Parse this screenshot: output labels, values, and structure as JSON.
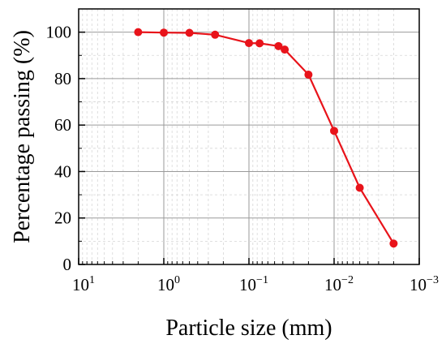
{
  "chart_data": {
    "type": "line",
    "title": "",
    "xlabel": "Particle size (mm)",
    "ylabel": "Percentage passing (%)",
    "x_scale": "log",
    "x_reversed": true,
    "xlim": [
      10,
      0.001
    ],
    "ylim": [
      0,
      110
    ],
    "grid": true,
    "x_ticks": [
      {
        "value": 10,
        "base": "10",
        "exp": "1"
      },
      {
        "value": 1,
        "base": "10",
        "exp": "0"
      },
      {
        "value": 0.1,
        "base": "10",
        "exp": "−1"
      },
      {
        "value": 0.01,
        "base": "10",
        "exp": "−2"
      },
      {
        "value": 0.001,
        "base": "10",
        "exp": "−3"
      }
    ],
    "y_ticks": [
      0,
      20,
      40,
      60,
      80,
      100
    ],
    "series": [
      {
        "color": "#e8131a",
        "x": [
          2,
          1,
          0.5,
          0.25,
          0.1,
          0.075,
          0.045,
          0.038,
          0.02,
          0.01,
          0.005,
          0.002
        ],
        "y": [
          100,
          99.8,
          99.7,
          98.9,
          95.3,
          95.2,
          94.0,
          92.5,
          81.7,
          57.5,
          33.0,
          9.0
        ]
      }
    ]
  }
}
